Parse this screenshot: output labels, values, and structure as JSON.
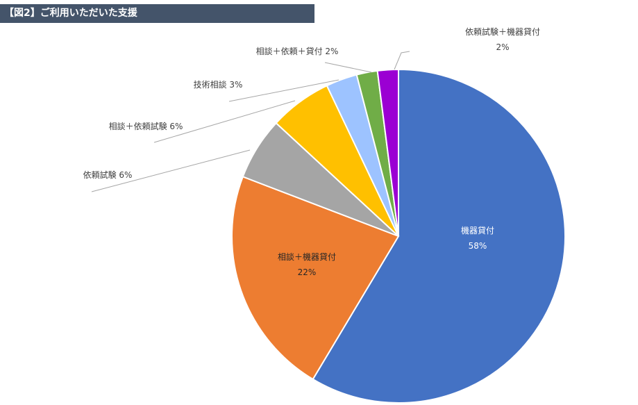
{
  "title": "【図2】ご利用いただいた支援",
  "chart_data": {
    "type": "pie",
    "title": "【図2】ご利用いただいた支援",
    "slices": [
      {
        "name": "機器貸付",
        "value": 58,
        "label": "58%",
        "color": "#4472C4"
      },
      {
        "name": "相談＋機器貸付",
        "value": 22,
        "label": "22%",
        "color": "#ED7D31"
      },
      {
        "name": "依頼試験",
        "value": 6,
        "label": "6%",
        "color": "#A5A5A5"
      },
      {
        "name": "相談＋依頼試験",
        "value": 6,
        "label": "6%",
        "color": "#FFC000"
      },
      {
        "name": "技術相談",
        "value": 3,
        "label": "3%",
        "color": "#9DC3FF"
      },
      {
        "name": "相談＋依頼＋貸付",
        "value": 2,
        "label": "2%",
        "color": "#70AD47"
      },
      {
        "name": "依頼試験＋機器貸付",
        "value": 2,
        "label": "2%",
        "color": "#9B00D3"
      }
    ]
  }
}
